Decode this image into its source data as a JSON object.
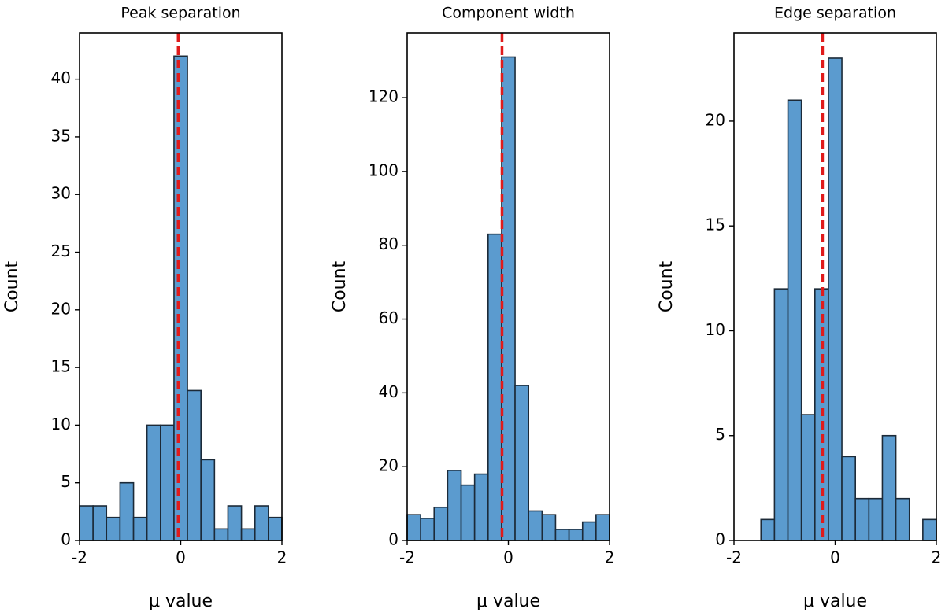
{
  "chart_data": [
    {
      "type": "histogram",
      "title": "Peak separation",
      "xlabel": "μ value",
      "ylabel": "Count",
      "bins": [
        -2,
        -1.733,
        -1.467,
        -1.2,
        -0.933,
        -0.667,
        -0.4,
        -0.133,
        0.133,
        0.4,
        0.667,
        0.933,
        1.2,
        1.467,
        1.733,
        2
      ],
      "counts": [
        3,
        3,
        2,
        5,
        2,
        10,
        10,
        42,
        13,
        7,
        1,
        3,
        1,
        3,
        2
      ],
      "color": "#5b9bcf",
      "edgecolor": "#1c2a38",
      "vline": -0.05,
      "vline_color": "#e01b1b",
      "xlim": [
        -2,
        2
      ],
      "xticks": [
        -2,
        0,
        2
      ],
      "ylim": [
        0,
        44
      ],
      "yticks": [
        0,
        5,
        10,
        15,
        20,
        25,
        30,
        35,
        40
      ]
    },
    {
      "type": "histogram",
      "title": "Component width",
      "xlabel": "μ value",
      "ylabel": "Count",
      "bins": [
        -2,
        -1.733,
        -1.467,
        -1.2,
        -0.933,
        -0.667,
        -0.4,
        -0.133,
        0.133,
        0.4,
        0.667,
        0.933,
        1.2,
        1.467,
        1.733,
        2
      ],
      "counts": [
        7,
        6,
        9,
        19,
        15,
        18,
        83,
        131,
        42,
        8,
        7,
        3,
        3,
        5,
        7
      ],
      "color": "#5b9bcf",
      "edgecolor": "#1c2a38",
      "vline": -0.125,
      "vline_color": "#e01b1b",
      "xlim": [
        -2,
        2
      ],
      "xticks": [
        -2,
        0,
        2
      ],
      "ylim": [
        0,
        137.5
      ],
      "yticks": [
        0,
        20,
        40,
        60,
        80,
        100,
        120
      ]
    },
    {
      "type": "histogram",
      "title": "Edge separation",
      "xlabel": "μ value",
      "ylabel": "Count",
      "bins": [
        -2,
        -1.733,
        -1.467,
        -1.2,
        -0.933,
        -0.667,
        -0.4,
        -0.133,
        0.133,
        0.4,
        0.667,
        0.933,
        1.2,
        1.467,
        1.733,
        2
      ],
      "counts": [
        0,
        0,
        1,
        12,
        21,
        6,
        12,
        23,
        4,
        2,
        2,
        5,
        2,
        0,
        1
      ],
      "color": "#5b9bcf",
      "edgecolor": "#1c2a38",
      "vline": -0.25,
      "vline_color": "#e01b1b",
      "xlim": [
        -2,
        2
      ],
      "xticks": [
        -2,
        0,
        2
      ],
      "ylim": [
        0,
        24.2
      ],
      "yticks": [
        0,
        5,
        10,
        15,
        20
      ]
    }
  ]
}
